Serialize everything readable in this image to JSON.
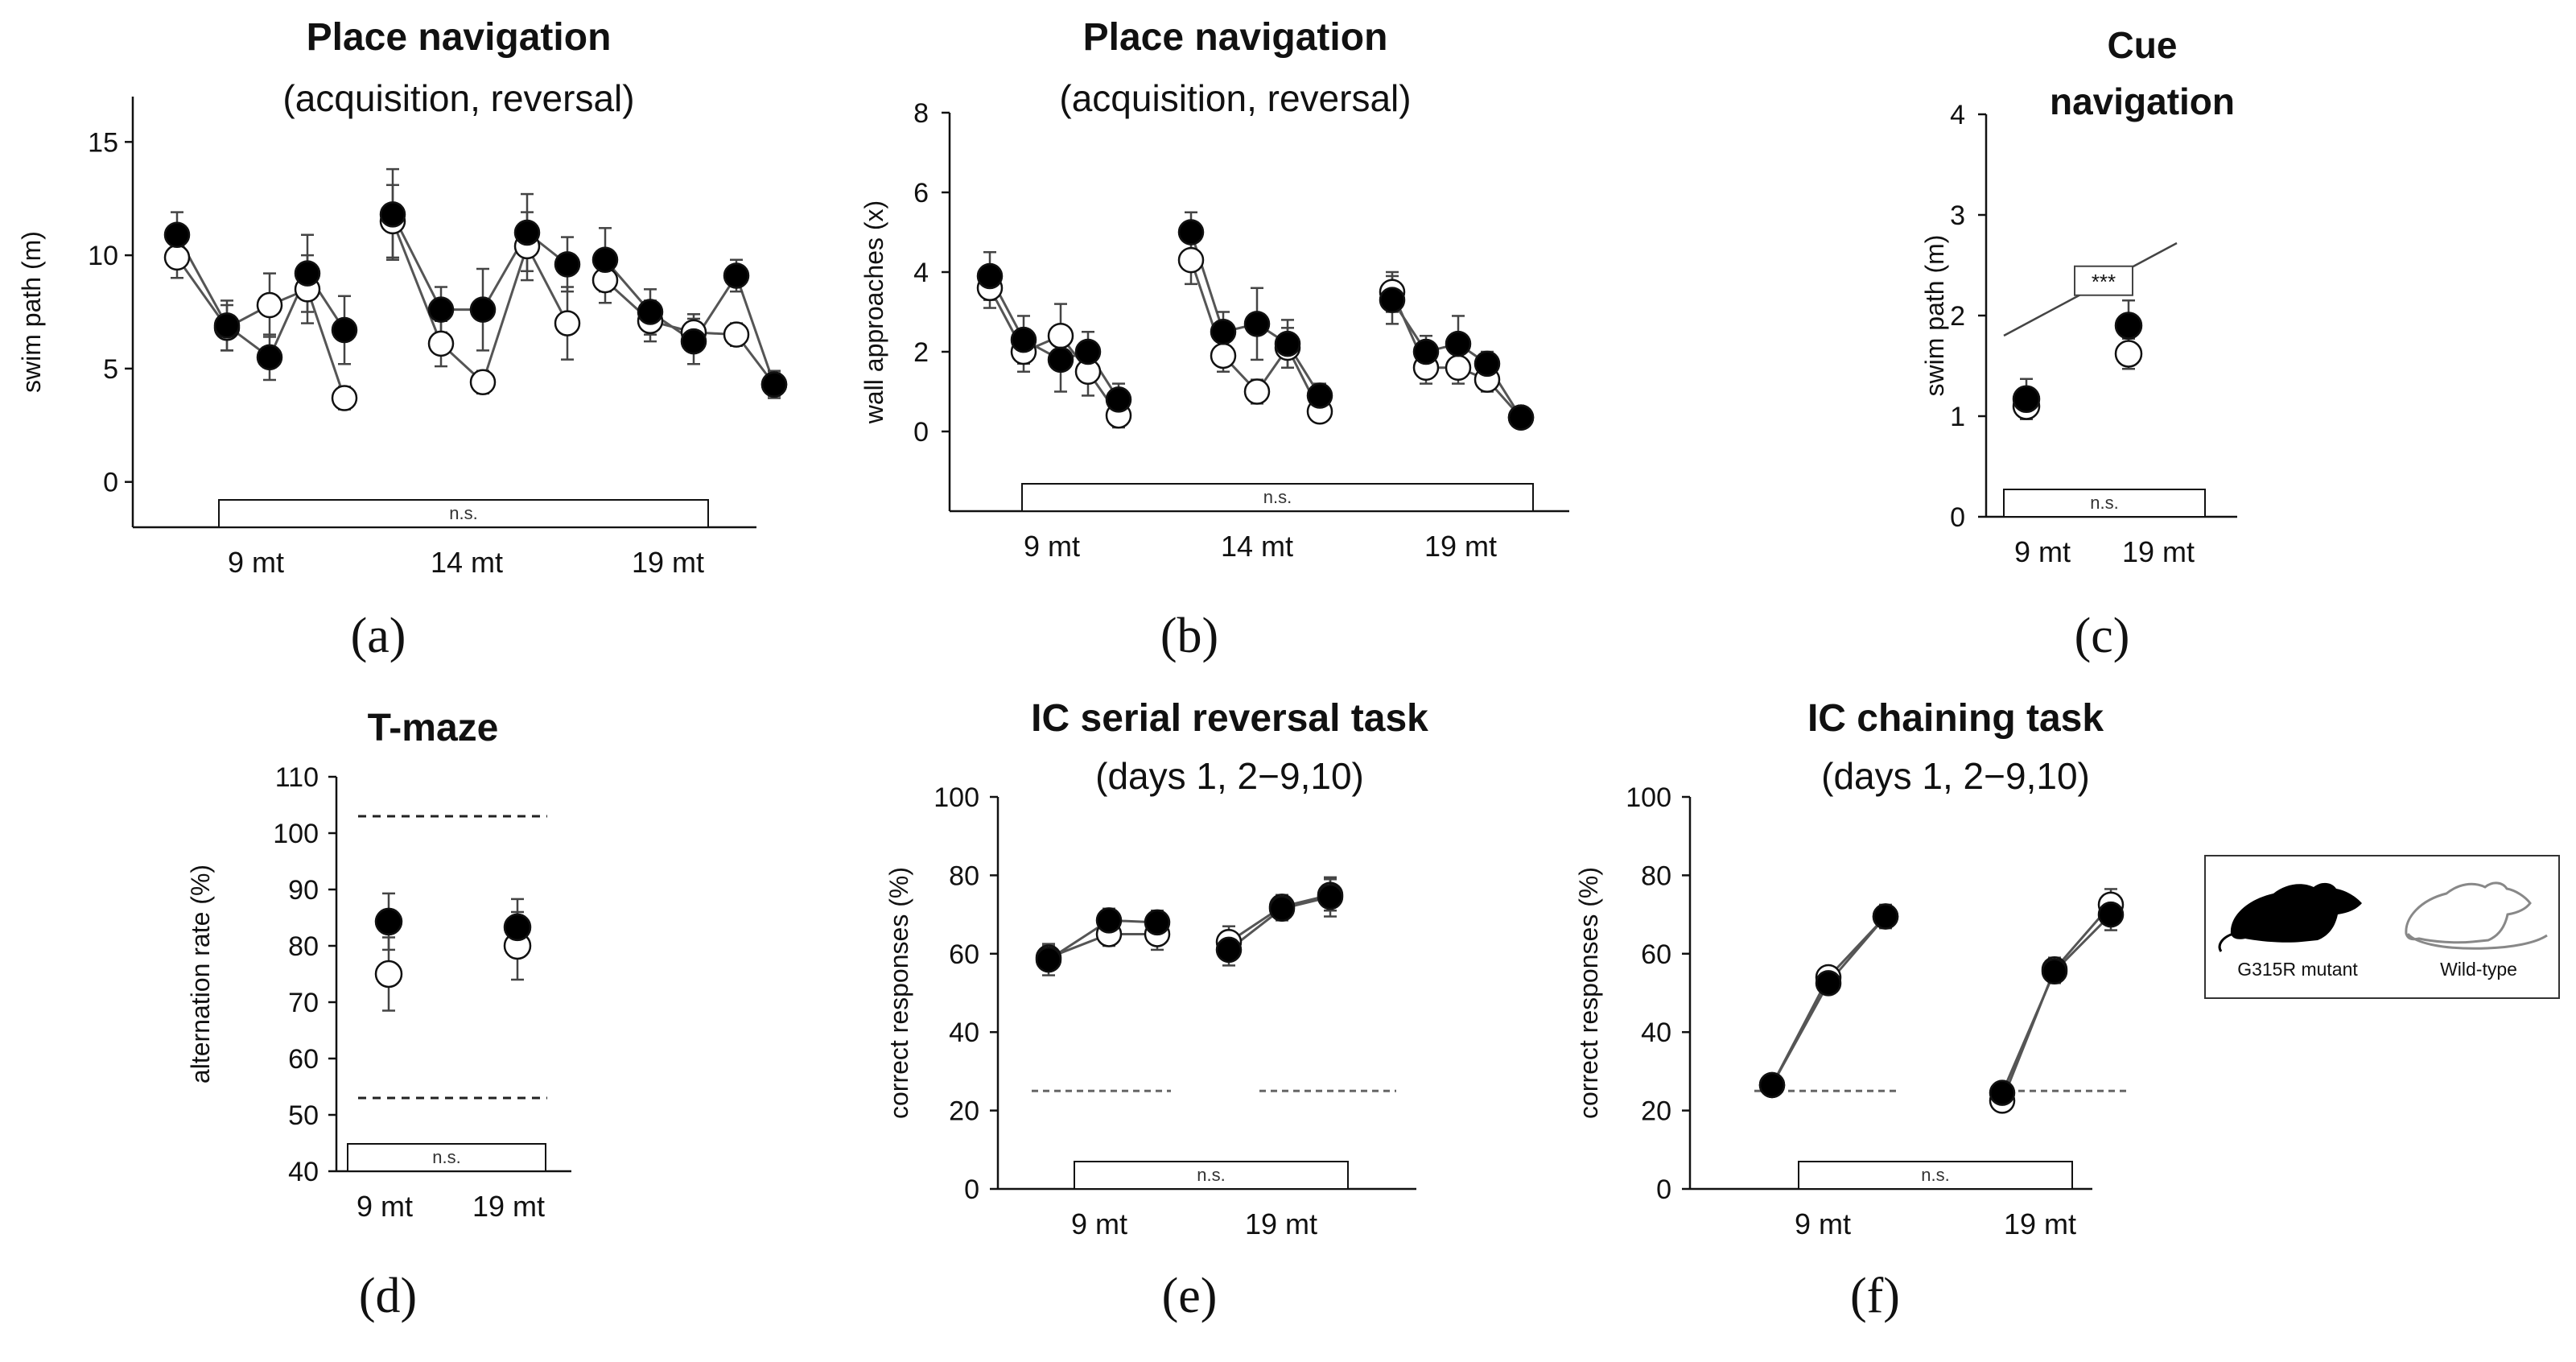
{
  "figure": {
    "legend": {
      "mutant_label": "G315R mutant",
      "wildtype_label": "Wild-type"
    },
    "colors": {
      "mutant": "#000000",
      "wildtype": "#ffffff",
      "axis": "#111111",
      "line": "#555555"
    }
  },
  "chart_data": [
    {
      "id": "a",
      "letter": "(a)",
      "type": "line",
      "title": "Place navigation",
      "subtitle": "(acquisition, reversal)",
      "ylabel": "swim path (m)",
      "ylim": [
        -2,
        17
      ],
      "yticks": [
        0,
        5,
        10,
        15
      ],
      "xgroups": [
        "9 mt",
        "14 mt",
        "19 mt"
      ],
      "ns_label": "n.s.",
      "series": [
        {
          "name": "G315R mutant",
          "groups": [
            {
              "label": "9 mt",
              "values": [
                10.9,
                6.9,
                5.5,
                9.2,
                6.7
              ],
              "err": [
                1.0,
                1.1,
                1.0,
                1.7,
                1.5
              ]
            },
            {
              "label": "14 mt",
              "values": [
                11.8,
                7.6,
                7.6,
                11.0,
                9.6
              ],
              "err": [
                2.0,
                1.0,
                1.8,
                1.7,
                1.2
              ]
            },
            {
              "label": "19 mt",
              "values": [
                9.8,
                7.5,
                6.2,
                9.1,
                4.3
              ],
              "err": [
                1.4,
                1.0,
                1.0,
                0.7,
                0.6
              ]
            }
          ]
        },
        {
          "name": "Wild-type",
          "groups": [
            {
              "label": "9 mt",
              "values": [
                9.9,
                6.8,
                7.8,
                8.5,
                3.7
              ],
              "err": [
                0.9,
                1.0,
                1.4,
                1.5,
                0.5
              ]
            },
            {
              "label": "14 mt",
              "values": [
                11.5,
                6.1,
                4.4,
                10.4,
                7.0
              ],
              "err": [
                1.6,
                1.0,
                0.5,
                1.5,
                1.6
              ]
            },
            {
              "label": "19 mt",
              "values": [
                8.9,
                7.1,
                6.6,
                6.5,
                4.3
              ],
              "err": [
                1.0,
                0.9,
                0.8,
                0.5,
                0.5
              ]
            }
          ]
        }
      ]
    },
    {
      "id": "b",
      "letter": "(b)",
      "type": "line",
      "title": "Place navigation",
      "subtitle": "(acquisition, reversal)",
      "ylabel": "wall approaches (x)",
      "ylim": [
        -2,
        8
      ],
      "yticks": [
        0,
        2,
        4,
        6,
        8
      ],
      "xgroups": [
        "9 mt",
        "14 mt",
        "19 mt"
      ],
      "ns_label": "n.s.",
      "series": [
        {
          "name": "G315R mutant",
          "groups": [
            {
              "label": "9 mt",
              "values": [
                3.9,
                2.3,
                1.8,
                2.0,
                0.8
              ],
              "err": [
                0.6,
                0.6,
                0.8,
                0.5,
                0.4
              ]
            },
            {
              "label": "14 mt",
              "values": [
                5.0,
                2.5,
                2.7,
                2.2,
                0.9
              ],
              "err": [
                0.5,
                0.5,
                0.9,
                0.6,
                0.3
              ]
            },
            {
              "label": "19 mt",
              "values": [
                3.3,
                2.0,
                2.2,
                1.7,
                0.35
              ],
              "err": [
                0.6,
                0.4,
                0.7,
                0.3,
                0.2
              ]
            }
          ]
        },
        {
          "name": "Wild-type",
          "groups": [
            {
              "label": "9 mt",
              "values": [
                3.6,
                2.0,
                2.4,
                1.5,
                0.4
              ],
              "err": [
                0.5,
                0.5,
                0.8,
                0.6,
                0.3
              ]
            },
            {
              "label": "14 mt",
              "values": [
                4.3,
                1.9,
                1.0,
                2.1,
                0.5
              ],
              "err": [
                0.6,
                0.4,
                0.3,
                0.5,
                0.2
              ]
            },
            {
              "label": "19 mt",
              "values": [
                3.5,
                1.6,
                1.6,
                1.3,
                0.35
              ],
              "err": [
                0.5,
                0.4,
                0.4,
                0.3,
                0.2
              ]
            }
          ]
        }
      ]
    },
    {
      "id": "c",
      "letter": "(c)",
      "type": "scatter",
      "title": "Cue",
      "subtitle": "navigation",
      "title_bold_both": true,
      "ylabel": "swim path (m)",
      "ylim": [
        0,
        4
      ],
      "yticks": [
        0,
        1,
        2,
        3,
        4
      ],
      "xgroups": [
        "9 mt",
        "19 mt"
      ],
      "ns_label": "n.s.",
      "sig_label": "***",
      "series": [
        {
          "name": "G315R mutant",
          "values": [
            1.17,
            1.9
          ],
          "err": [
            0.2,
            0.25
          ]
        },
        {
          "name": "Wild-type",
          "values": [
            1.1,
            1.62
          ],
          "err": [
            0.12,
            0.15
          ]
        }
      ]
    },
    {
      "id": "d",
      "letter": "(d)",
      "type": "scatter",
      "title": "T-maze",
      "ylabel": "alternation rate (%)",
      "ylim": [
        40,
        110
      ],
      "yticks": [
        40,
        50,
        60,
        70,
        80,
        90,
        100,
        110
      ],
      "xgroups": [
        "9 mt",
        "19 mt"
      ],
      "ns_label": "n.s.",
      "dashed_lines": [
        103,
        53
      ],
      "series": [
        {
          "name": "G315R mutant",
          "values": [
            84.3,
            83.3
          ],
          "err": [
            5,
            5
          ]
        },
        {
          "name": "Wild-type",
          "values": [
            75,
            80
          ],
          "err": [
            6.5,
            6
          ]
        }
      ]
    },
    {
      "id": "e",
      "letter": "(e)",
      "type": "line",
      "title": "IC serial reversal task",
      "subtitle": "(days 1, 2−9,10)",
      "ylabel": "correct responses (%)",
      "ylim": [
        0,
        100
      ],
      "yticks": [
        0,
        20,
        40,
        60,
        80,
        100
      ],
      "xgroups": [
        "9 mt",
        "19 mt"
      ],
      "ns_label": "n.s.",
      "chance": 25,
      "series": [
        {
          "name": "G315R mutant",
          "groups": [
            {
              "label": "9 mt",
              "values": [
                58.5,
                68.5,
                68
              ],
              "err": [
                4,
                3,
                3
              ]
            },
            {
              "label": "19 mt",
              "values": [
                61,
                71.5,
                74.5
              ],
              "err": [
                4,
                3,
                5
              ]
            }
          ]
        },
        {
          "name": "Wild-type",
          "groups": [
            {
              "label": "9 mt",
              "values": [
                59,
                65,
                65
              ],
              "err": [
                3,
                3,
                4
              ]
            },
            {
              "label": "19 mt",
              "values": [
                63,
                72,
                75
              ],
              "err": [
                4,
                3,
                4
              ]
            }
          ]
        }
      ]
    },
    {
      "id": "f",
      "letter": "(f)",
      "type": "line",
      "title": "IC chaining task",
      "subtitle": "(days 1, 2−9,10)",
      "ylabel": "correct responses (%)",
      "ylim": [
        0,
        100
      ],
      "yticks": [
        0,
        20,
        40,
        60,
        80,
        100
      ],
      "xgroups": [
        "9 mt",
        "19 mt"
      ],
      "ns_label": "n.s.",
      "chance": 25,
      "series": [
        {
          "name": "G315R mutant",
          "groups": [
            {
              "label": "9 mt",
              "values": [
                26.5,
                52.5,
                69.5
              ],
              "err": [
                2,
                2,
                3
              ]
            },
            {
              "label": "19 mt",
              "values": [
                24.5,
                55.5,
                70
              ],
              "err": [
                2,
                3,
                4
              ]
            }
          ]
        },
        {
          "name": "Wild-type",
          "groups": [
            {
              "label": "9 mt",
              "values": [
                26.5,
                54,
                69.5
              ],
              "err": [
                1.5,
                2,
                2
              ]
            },
            {
              "label": "19 mt",
              "values": [
                22.5,
                56,
                72.5
              ],
              "err": [
                1.5,
                3,
                4
              ]
            }
          ]
        }
      ]
    }
  ]
}
